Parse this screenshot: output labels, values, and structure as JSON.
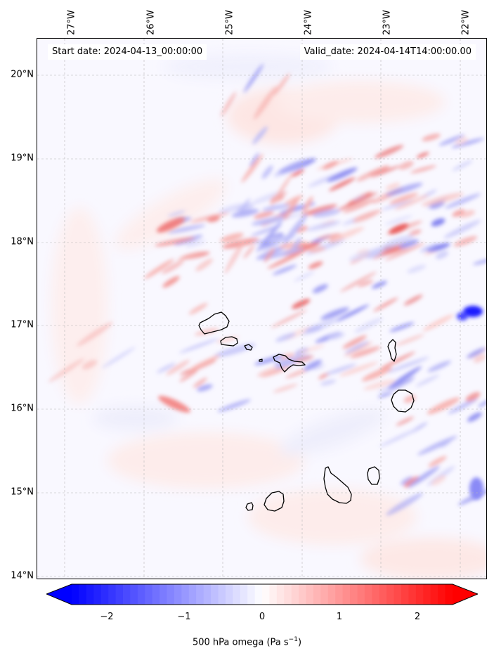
{
  "header": {
    "start_date": "Start date: 2024-04-13_00:00:00",
    "valid_date": "Valid_date: 2024-04-14T14:00:00.00"
  },
  "map": {
    "longitude_labels": [
      "27°W",
      "26°W",
      "25°W",
      "24°W",
      "23°W",
      "22°W"
    ],
    "latitude_labels": [
      "20°N",
      "19°N",
      "18°N",
      "17°N",
      "16°N",
      "15°N",
      "14°N"
    ],
    "islands": [
      "Santo Antão",
      "São Vicente",
      "Santa Luzia",
      "Branco",
      "São Nicolau",
      "Sal",
      "Boa Vista",
      "Maio",
      "Santiago",
      "Fogo",
      "Brava"
    ],
    "field": "500 hPa omega",
    "gridlines": true
  },
  "colorbar": {
    "ticks": [
      "−2",
      "−1",
      "0",
      "1",
      "2"
    ],
    "range": [
      -2.6,
      2.6
    ],
    "low_color": "#0000ff",
    "mid_color": "#ffffff",
    "high_color": "#ff0000",
    "label_prefix": "500 hPa omega (Pa s",
    "label_exp": "−1",
    "label_suffix": ")"
  }
}
